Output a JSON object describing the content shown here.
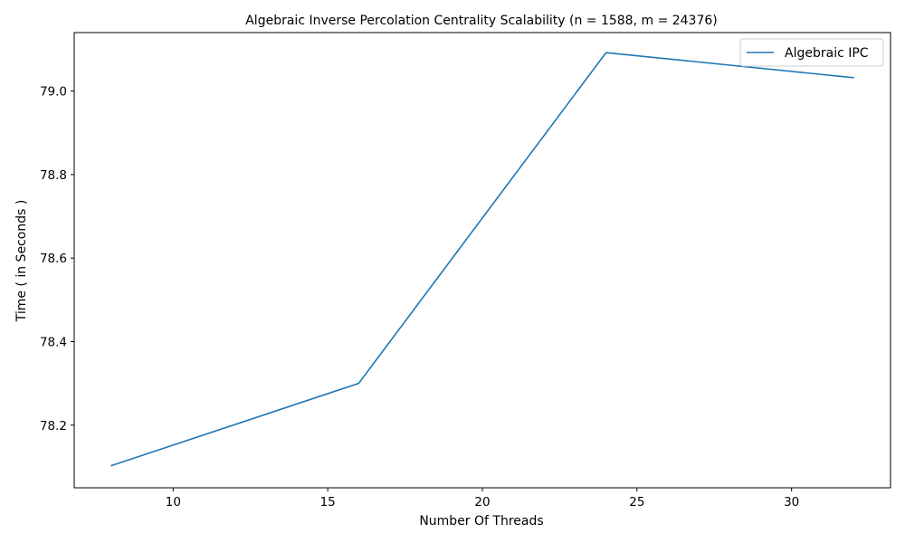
{
  "chart_data": {
    "type": "line",
    "title": "Algebraic Inverse Percolation Centrality Scalability (n = 1588, m = 24376)",
    "xlabel": "Number Of Threads",
    "ylabel": "Time ( in Seconds )",
    "x": [
      8,
      16,
      24,
      32
    ],
    "series": [
      {
        "name": "Algebraic IPC",
        "values": [
          78.103,
          78.3,
          79.092,
          79.032
        ],
        "color": "#1f77b4"
      }
    ],
    "xlim": [
      6.8,
      33.2
    ],
    "ylim": [
      78.05,
      79.14
    ],
    "xticks": [
      10,
      15,
      20,
      25,
      30
    ],
    "xtick_labels": [
      "10",
      "15",
      "20",
      "25",
      "30"
    ],
    "yticks": [
      78.2,
      78.4,
      78.6,
      78.8,
      79.0
    ],
    "ytick_labels": [
      "78.2",
      "78.4",
      "78.6",
      "78.8",
      "79.0"
    ],
    "grid": false,
    "legend": "top-right"
  }
}
